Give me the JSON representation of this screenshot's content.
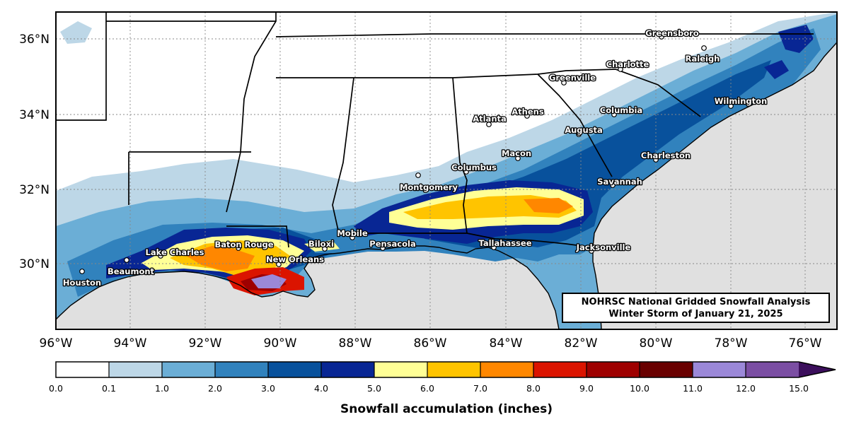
{
  "map": {
    "title_box": {
      "line1": "NOHRSC National Gridded Snowfall Analysis",
      "line2": "Winter Storm of January 21, 2025"
    },
    "lat_labels": [
      "36°N",
      "34°N",
      "32°N",
      "30°N"
    ],
    "lon_labels": [
      "96°W",
      "94°W",
      "92°W",
      "90°W",
      "88°W",
      "86°W",
      "84°W",
      "82°W",
      "80°W",
      "78°W",
      "76°W"
    ],
    "cities": [
      {
        "name": "Greensboro"
      },
      {
        "name": "Raleigh"
      },
      {
        "name": "Charlotte"
      },
      {
        "name": "Greenville"
      },
      {
        "name": "Wilmington"
      },
      {
        "name": "Athens"
      },
      {
        "name": "Atlanta"
      },
      {
        "name": "Columbia"
      },
      {
        "name": "Augusta"
      },
      {
        "name": "Macon"
      },
      {
        "name": "Charleston"
      },
      {
        "name": "Columbus"
      },
      {
        "name": "Montgomery"
      },
      {
        "name": "Savannah"
      },
      {
        "name": "Mobile"
      },
      {
        "name": "Biloxi"
      },
      {
        "name": "Baton Rouge"
      },
      {
        "name": "Lake Charles"
      },
      {
        "name": "New Orleans"
      },
      {
        "name": "Pensacola"
      },
      {
        "name": "Tallahassee"
      },
      {
        "name": "Jacksonville"
      },
      {
        "name": "Beaumont"
      },
      {
        "name": "Houston"
      }
    ],
    "colors": {
      "ocean": "#e0e0e0",
      "land": "#ffffff"
    }
  },
  "colorbar": {
    "title": "Snowfall accumulation (inches)",
    "ticks": [
      "0.0",
      "0.1",
      "1.0",
      "2.0",
      "3.0",
      "4.0",
      "5.0",
      "6.0",
      "7.0",
      "8.0",
      "9.0",
      "10.0",
      "11.0",
      "12.0",
      "15.0"
    ],
    "bins": [
      {
        "range": "0.0-0.1",
        "color": "#ffffff"
      },
      {
        "range": "0.1-1.0",
        "color": "#bdd7e7"
      },
      {
        "range": "1.0-2.0",
        "color": "#6baed6"
      },
      {
        "range": "2.0-3.0",
        "color": "#3182bd"
      },
      {
        "range": "3.0-4.0",
        "color": "#08519c"
      },
      {
        "range": "4.0-5.0",
        "color": "#082694"
      },
      {
        "range": "5.0-6.0",
        "color": "#ffff96"
      },
      {
        "range": "6.0-7.0",
        "color": "#ffc400"
      },
      {
        "range": "7.0-8.0",
        "color": "#ff8700"
      },
      {
        "range": "8.0-9.0",
        "color": "#db1400"
      },
      {
        "range": "9.0-10.0",
        "color": "#9e0000"
      },
      {
        "range": "10.0-11.0",
        "color": "#690000"
      },
      {
        "range": "11.0-12.0",
        "color": "#9b88d8"
      },
      {
        "range": "12.0-15.0",
        "color": "#7b4ea3"
      },
      {
        "range": ">15.0",
        "color": "#3c0f5c"
      }
    ]
  }
}
